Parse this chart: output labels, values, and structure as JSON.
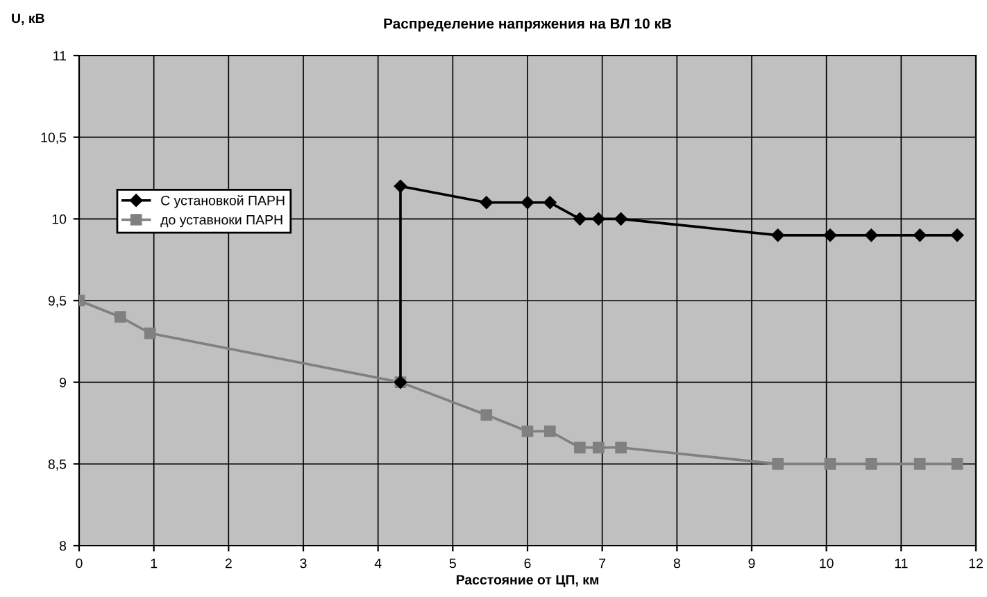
{
  "chart_data": {
    "type": "line",
    "title": "Распределение напряжения на ВЛ 10 кВ",
    "xlabel": "Расстояние от ЦП, км",
    "ylabel": "U, кВ",
    "series": [
      {
        "name": "С установкой ПАРН",
        "color": "#000000",
        "marker": "diamond",
        "x": [
          4.3,
          4.3,
          5.45,
          6.0,
          6.3,
          6.7,
          6.95,
          7.25,
          9.35,
          10.05,
          10.6,
          11.25,
          11.75
        ],
        "values": [
          9.0,
          10.2,
          10.1,
          10.1,
          10.1,
          10.0,
          10.0,
          10.0,
          9.9,
          9.9,
          9.9,
          9.9,
          9.9
        ]
      },
      {
        "name": "до уставноки ПАРН",
        "color": "#808080",
        "marker": "square",
        "x": [
          0,
          0.55,
          0.95,
          4.3,
          5.45,
          6.0,
          6.3,
          6.7,
          6.95,
          7.25,
          9.35,
          10.05,
          10.6,
          11.25,
          11.75
        ],
        "values": [
          9.5,
          9.4,
          9.3,
          9.0,
          8.8,
          8.7,
          8.7,
          8.6,
          8.6,
          8.6,
          8.5,
          8.5,
          8.5,
          8.5,
          8.5
        ]
      }
    ],
    "xlim": [
      0,
      12
    ],
    "xticks": [
      0,
      1,
      2,
      3,
      4,
      5,
      6,
      7,
      8,
      9,
      10,
      11,
      12
    ],
    "ylim": [
      8,
      11
    ],
    "yticks": [
      8,
      {
        "value": 8.5,
        "label": "8,5"
      },
      9,
      {
        "value": 9.5,
        "label": "9,5"
      },
      10,
      {
        "value": 10.5,
        "label": "10,5"
      },
      11
    ],
    "grid": true,
    "legend": "top left"
  }
}
